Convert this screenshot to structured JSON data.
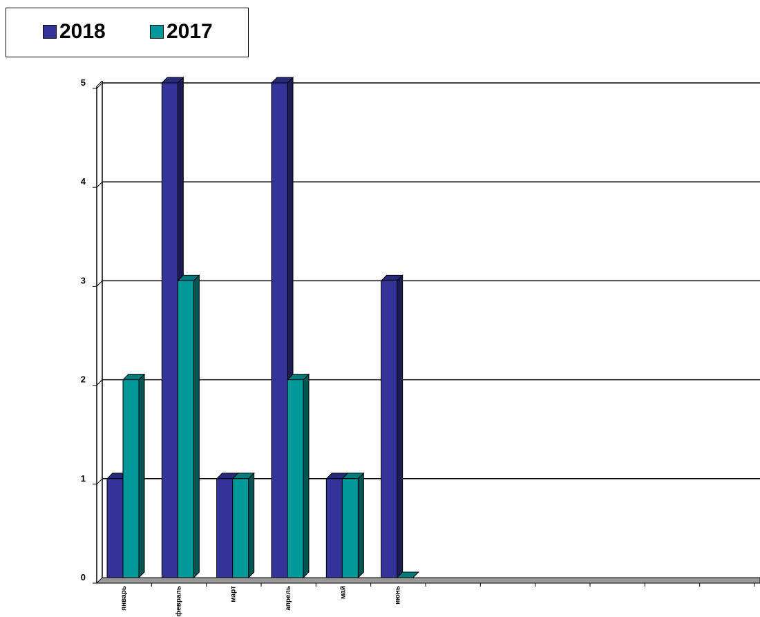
{
  "chart_data": {
    "type": "bar",
    "style": "3d-clustered-column",
    "categories": [
      "январь",
      "февраль",
      "март",
      "апрель",
      "май",
      "июнь"
    ],
    "series": [
      {
        "name": "2018",
        "values": [
          1,
          5,
          1,
          5,
          1,
          3
        ],
        "color": "#333399"
      },
      {
        "name": "2017",
        "values": [
          2,
          3,
          1,
          2,
          1,
          0
        ],
        "color": "#009999"
      }
    ],
    "yticks": [
      "0",
      "1",
      "2",
      "3",
      "4",
      "5"
    ],
    "ylim": [
      0,
      5
    ],
    "total_category_slots": 12,
    "grid": true,
    "legend": "top-left",
    "colors": {
      "floor": "#999999",
      "gridline": "#000000"
    }
  }
}
